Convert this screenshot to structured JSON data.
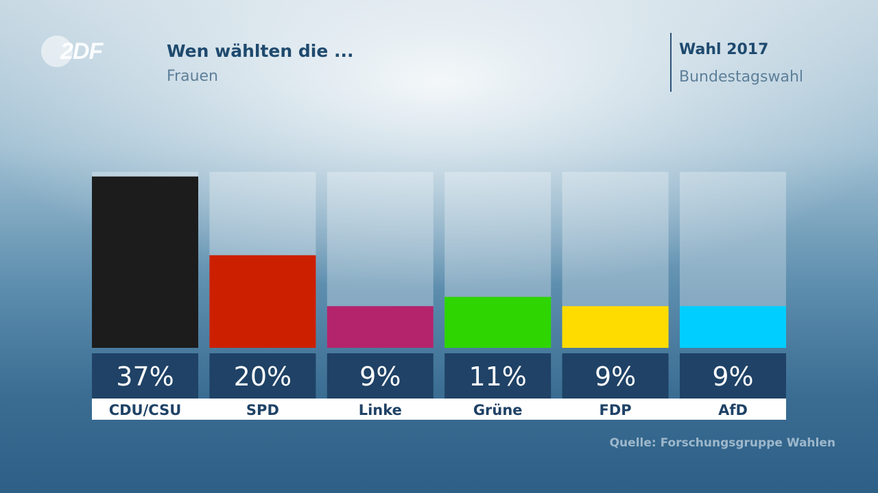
{
  "header": {
    "logo_text": "2DF",
    "title": "Wen wählten die ...",
    "subtitle": "Frauen",
    "election_title": "Wahl 2017",
    "election_subtitle": "Bundestagswahl"
  },
  "source": "Quelle: Forschungsgruppe Wahlen",
  "chart_data": {
    "type": "bar",
    "title": "Wen wählten die ...",
    "subtitle": "Frauen",
    "categories": [
      "CDU/CSU",
      "SPD",
      "Linke",
      "Grüne",
      "FDP",
      "AfD"
    ],
    "values": [
      37,
      20,
      9,
      11,
      9,
      9
    ],
    "value_labels": [
      "37%",
      "20%",
      "9%",
      "11%",
      "9%",
      "9%"
    ],
    "colors": [
      "#1c1c1c",
      "#cc1f00",
      "#b3246c",
      "#2ed500",
      "#ffdc00",
      "#00ceff"
    ],
    "ylim": [
      0,
      38
    ],
    "unit": "%",
    "grid": false,
    "legend": "none"
  }
}
